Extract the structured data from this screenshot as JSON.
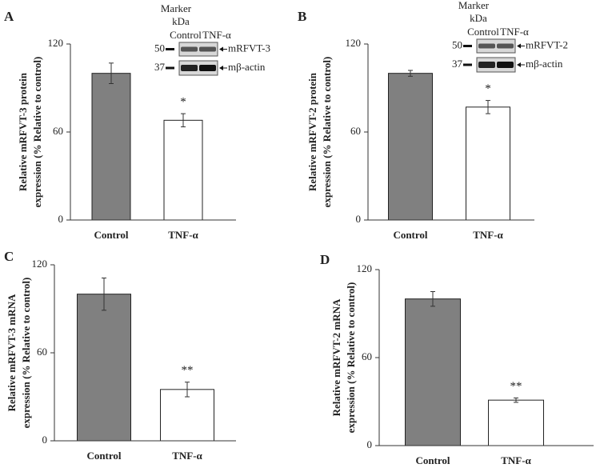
{
  "chart_data": [
    {
      "type": "bar",
      "panel": "A",
      "ylabel": [
        "Relative mRFVT-3 protein",
        "expression (%  Relative to control)"
      ],
      "categories": [
        "Control",
        "TNF-α"
      ],
      "values": [
        100,
        68
      ],
      "errors": [
        7,
        4.5
      ],
      "significance": [
        null,
        "*"
      ],
      "colors": [
        "#808080",
        "#ffffff"
      ],
      "ylim": [
        0,
        120
      ],
      "yticks": [
        0,
        60,
        120
      ],
      "inset": {
        "marker_label": [
          "Marker",
          "kDa"
        ],
        "lanes": [
          "Control",
          "TNF-α"
        ],
        "bands": [
          {
            "label": "mRFVT-3",
            "marker": 50
          },
          {
            "label": "mβ-actin",
            "marker": 37
          }
        ]
      }
    },
    {
      "type": "bar",
      "panel": "B",
      "ylabel": [
        "Relative mRFVT-2 protein",
        "expression (%  Relative to control)"
      ],
      "categories": [
        "Control",
        "TNF-α"
      ],
      "values": [
        100,
        77
      ],
      "errors": [
        2,
        4.5
      ],
      "significance": [
        null,
        "*"
      ],
      "colors": [
        "#808080",
        "#ffffff"
      ],
      "ylim": [
        0,
        120
      ],
      "yticks": [
        0,
        60,
        120
      ],
      "inset": {
        "marker_label": [
          "Marker",
          "kDa"
        ],
        "lanes": [
          "Control",
          "TNF-α"
        ],
        "bands": [
          {
            "label": "mRFVT-2",
            "marker": 50
          },
          {
            "label": "mβ-actin",
            "marker": 37
          }
        ]
      }
    },
    {
      "type": "bar",
      "panel": "C",
      "ylabel": [
        "Relative mRFVT-3 mRNA",
        "expression (%  Relative to control)"
      ],
      "categories": [
        "Control",
        "TNF-α"
      ],
      "values": [
        100,
        35
      ],
      "errors": [
        11,
        5
      ],
      "significance": [
        null,
        "**"
      ],
      "colors": [
        "#808080",
        "#ffffff"
      ],
      "ylim": [
        0,
        120
      ],
      "yticks": [
        0,
        60,
        120
      ]
    },
    {
      "type": "bar",
      "panel": "D",
      "ylabel": [
        "Relative mRFVT-2 mRNA",
        "expression (%  Relative to control)"
      ],
      "categories": [
        "Control",
        "TNF-α"
      ],
      "values": [
        100,
        31
      ],
      "errors": [
        5,
        1.5
      ],
      "significance": [
        null,
        "**"
      ],
      "colors": [
        "#808080",
        "#ffffff"
      ],
      "ylim": [
        0,
        120
      ],
      "yticks": [
        0,
        60,
        120
      ]
    }
  ]
}
